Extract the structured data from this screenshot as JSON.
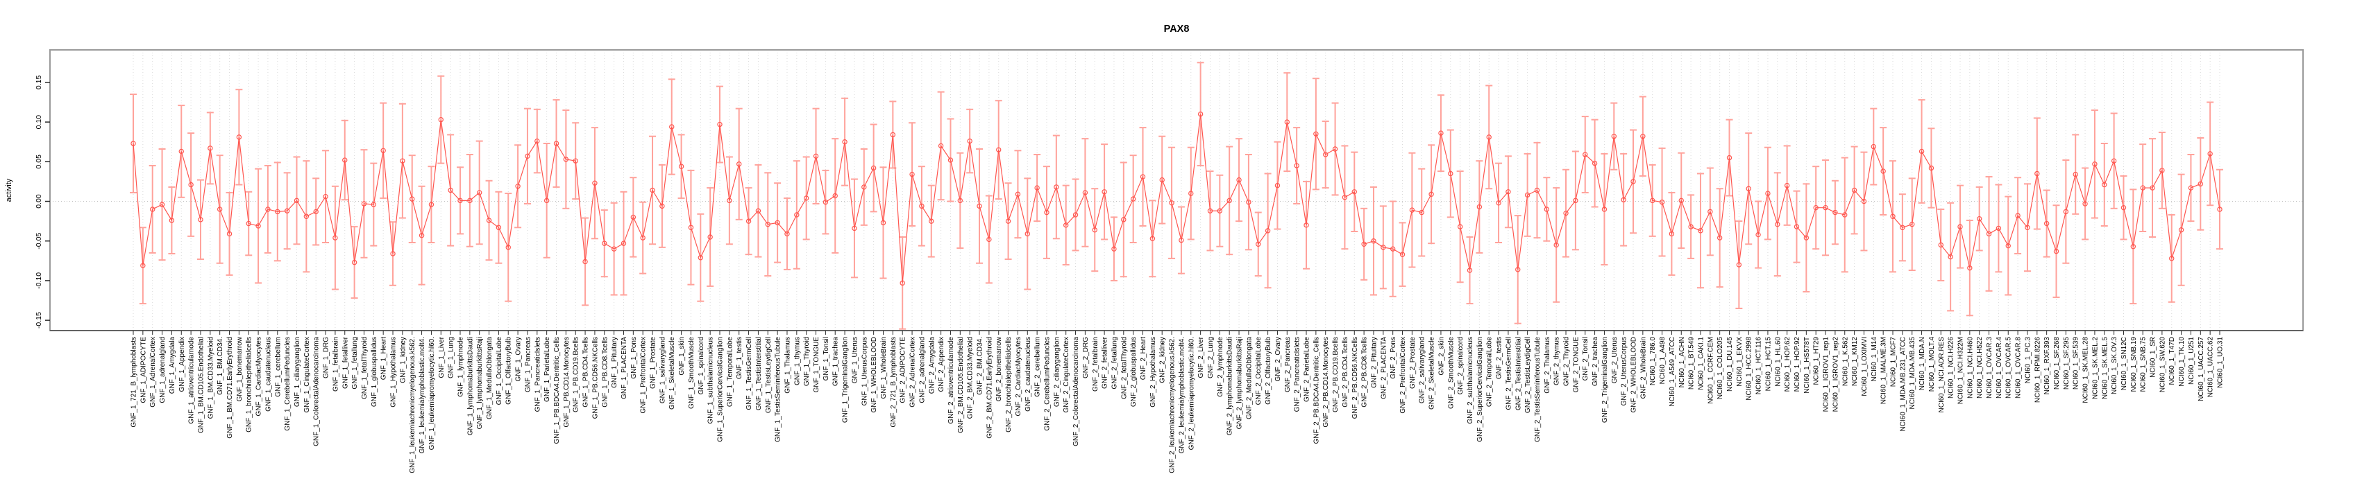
{
  "chart_data": {
    "type": "scatter",
    "subtype": "point-estimates-with-error-bars-connected",
    "title": "PAX8",
    "xlabel": "",
    "ylabel": "activity",
    "ylim": [
      -0.163,
      0.191
    ],
    "y_ticks": [
      0.15,
      0.1,
      0.05,
      0.0,
      -0.05,
      -0.1,
      -0.15
    ],
    "y_tick_labels": [
      "0.15",
      "0.10",
      "0.05",
      "0.00",
      "-0.05",
      "-0.10",
      "-0.15"
    ],
    "grid": "vertical-dotted-per-category",
    "zero_line": true,
    "legend_position": "none",
    "series_prefixes": [
      "GNF_1_",
      "GNF_2_",
      "NCI60_1_"
    ],
    "gnf_tissues": [
      "721_B_lymphoblasts",
      "ADIPOCYTE",
      "AdrenalCortex",
      "adrenalgland",
      "Amygdala",
      "Appendix",
      "atrioventricularnode",
      "BM.CD105.Endothelial",
      "BM.CD33.Myeloid",
      "BM.CD34.",
      "BM.CD71.EarlyErythroid",
      "bonemarrow",
      "bronchialepithelialcells",
      "CardiacMyocytes",
      "caudatenucleus",
      "cerebellum",
      "CerebellumPeduncles",
      "ciliaryganglion",
      "CingulateCortex",
      "ColorectalAdenocarcinoma",
      "DRG",
      "fetalbrain",
      "fetalliver",
      "fetallung",
      "fetalThyroid",
      "globuspallidus",
      "Heart",
      "Hypothalamus",
      "kidney",
      "leukemiachronicmyelogenous.k562.",
      "leukemialymphoblastic.molt4.",
      "leukemiapromyelocytic.hl60.",
      "Liver",
      "Lung",
      "lymphnode",
      "lymphomaburkittsDaudi",
      "lymphomaburkittsRaji",
      "MedullaOblongata",
      "OccipitalLobe",
      "OlfactoryBulb",
      "Ovary",
      "Pancreas",
      "PancreaticIslets",
      "ParietalLobe",
      "PB.BDCA4.Dentritic_Cells",
      "PB.CD14.Monocytes",
      "PB.CD19.Bcells",
      "PB.CD4.Tcells",
      "PB.CD56.NKCells",
      "PB.CD8.Tcells",
      "Pituitary",
      "PLACENTA",
      "Pons",
      "PrefrontalCortex",
      "Prostate",
      "salivarygland",
      "SkeletalMuscle",
      "skin",
      "SmoothMuscle",
      "spinalcord",
      "subthalamicnucleus",
      "SuperiorCervicalGanglion",
      "TemporalLobe",
      "testis",
      "TestisGermCell",
      "TestisInterstitial",
      "TestisLeydigCell",
      "TestisSeminiferousTubule",
      "Thalamus",
      "thymus",
      "Thyroid",
      "TONGUE",
      "Tonsil",
      "trachea",
      "TrigeminalGanglion",
      "Uterus",
      "UterusCorpus",
      "WHOLEBLOOD",
      "WholeBrain"
    ],
    "nci60_cell_lines": [
      "786.0",
      "A498",
      "A549_ATCC",
      "ACHN",
      "BT.549",
      "CAKI.1",
      "CCRF.CEM",
      "COLO205",
      "DU.145",
      "EKVX",
      "HCC.2998",
      "HCT.116",
      "HCT.15",
      "HL.60",
      "HOP.62",
      "HOP.92",
      "HS578T",
      "HT29",
      "IGROV1_rep1",
      "IGROV1_rep2",
      "K.562",
      "KM12",
      "LOXIMVI",
      "M14",
      "MALME.3M",
      "MCF7",
      "MDA.MB.231_ATCC",
      "MDA.MB.435",
      "MDA.N",
      "MOLT.4",
      "NCI.ADR.RES",
      "NCI.H226",
      "NCI.H322M",
      "NCI.H460",
      "NCI.H522",
      "OVCAR.3",
      "OVCAR.4",
      "OVCAR.5",
      "OVCAR.8",
      "PC.3",
      "RPMI.8226",
      "RXF.393",
      "SF.268",
      "SF.295",
      "SF.539",
      "SK.MEL.28",
      "SK.MEL.2",
      "SK.MEL.5",
      "SK.OV.3",
      "SN12C",
      "SNB.19",
      "SNB.75",
      "SR",
      "SW.620",
      "T47D",
      "TK.10",
      "U251",
      "UACC.257",
      "UACC.62",
      "UO.31"
    ],
    "means": [
      0.073,
      -0.081,
      -0.01,
      -0.004,
      -0.024,
      0.063,
      0.021,
      -0.023,
      0.067,
      -0.01,
      -0.041,
      0.081,
      -0.028,
      -0.031,
      -0.01,
      -0.013,
      -0.012,
      0.001,
      -0.019,
      -0.013,
      0.006,
      -0.046,
      0.052,
      -0.077,
      -0.003,
      -0.004,
      0.064,
      -0.066,
      0.051,
      0.003,
      -0.043,
      -0.004,
      0.103,
      0.014,
      0.001,
      0.001,
      0.011,
      -0.024,
      -0.033,
      -0.058,
      0.019,
      0.057,
      0.076,
      0.001,
      0.073,
      0.053,
      0.051,
      -0.076,
      0.023,
      -0.053,
      -0.06,
      -0.053,
      -0.02,
      -0.046,
      0.014,
      -0.006,
      0.094,
      0.044,
      -0.033,
      -0.071,
      -0.045,
      0.097,
      0.001,
      0.047,
      -0.025,
      -0.012,
      -0.029,
      -0.027,
      -0.041,
      -0.017,
      0.004,
      0.057,
      -0.001,
      0.007,
      0.075,
      -0.034,
      0.018,
      0.042,
      -0.027,
      0.084,
      -0.103,
      0.034,
      -0.006,
      -0.025,
      0.07,
      0.052,
      0.001,
      0.076,
      -0.006,
      -0.048,
      0.065,
      -0.025,
      0.009,
      -0.041,
      0.017,
      -0.014,
      0.018,
      -0.03,
      -0.017,
      0.011,
      -0.036,
      0.012,
      -0.06,
      -0.023,
      0.003,
      0.031,
      -0.047,
      0.027,
      -0.002,
      -0.049,
      0.01,
      0.11,
      -0.012,
      -0.012,
      0.001,
      0.027,
      -0.001,
      -0.054,
      -0.037,
      0.02,
      0.1,
      0.045,
      -0.03,
      0.085,
      0.059,
      0.066,
      0.005,
      0.012,
      -0.054,
      -0.05,
      -0.058,
      -0.06,
      -0.067,
      -0.011,
      -0.014,
      0.009,
      0.086,
      0.035,
      -0.032,
      -0.087,
      -0.007,
      0.081,
      -0.002,
      0.012,
      -0.086,
      0.008,
      0.014,
      -0.01,
      -0.055,
      -0.015,
      0.001,
      0.059,
      0.048,
      -0.01,
      0.082,
      0.002,
      0.025,
      0.082,
      0.001,
      -0.001,
      -0.041,
      0.001,
      -0.032,
      -0.037,
      -0.013,
      -0.046,
      0.055,
      -0.08,
      0.016,
      -0.042,
      0.01,
      -0.029,
      0.02,
      -0.032,
      -0.046,
      -0.008,
      -0.008,
      -0.014,
      -0.017,
      0.014,
      0.0,
      0.069,
      0.038,
      -0.019,
      -0.033,
      -0.029,
      0.063,
      0.042,
      -0.055,
      -0.07,
      -0.032,
      -0.084,
      -0.022,
      -0.041,
      -0.034,
      -0.056,
      -0.018,
      -0.033,
      0.035,
      -0.028,
      -0.063,
      -0.013,
      0.034,
      -0.003,
      0.047,
      0.021,
      0.051,
      -0.008,
      -0.057,
      0.017,
      0.017,
      0.039,
      -0.072,
      -0.036,
      0.017,
      0.022,
      0.06,
      -0.01
    ],
    "ci_halfwidth_pattern": [
      0.062,
      0.048,
      0.055,
      0.07,
      0.042,
      0.058,
      0.065,
      0.05,
      0.045,
      0.068,
      0.052,
      0.06,
      0.04,
      0.072,
      0.055
    ],
    "colors": {
      "point": "#ff554e",
      "line": "#ff554e",
      "error_bar": "#ffa29b",
      "grid": "#d9d9d9",
      "zero_line": "#c0c0c0",
      "box": "#9a9a9a",
      "axis_tick": "#2a2a2a",
      "axis_text": "#000000"
    }
  }
}
